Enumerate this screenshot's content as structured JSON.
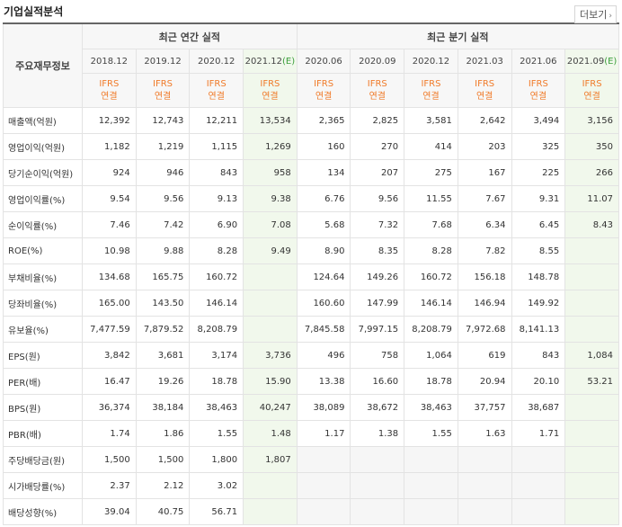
{
  "section": {
    "title": "기업실적분석",
    "more_label": "더보기"
  },
  "table": {
    "corner": "주요재무정보",
    "annual_label": "최근 연간 실적",
    "quarter_label": "최근 분기 실적",
    "annual_periods": [
      {
        "year": "2018.12",
        "est": false
      },
      {
        "year": "2019.12",
        "est": false
      },
      {
        "year": "2020.12",
        "est": false
      },
      {
        "year": "2021.12",
        "est": true,
        "est_mark": "(E)"
      }
    ],
    "quarter_periods": [
      {
        "year": "2020.06",
        "est": false
      },
      {
        "year": "2020.09",
        "est": false
      },
      {
        "year": "2020.12",
        "est": false
      },
      {
        "year": "2021.03",
        "est": false
      },
      {
        "year": "2021.06",
        "est": false
      },
      {
        "year": "2021.09",
        "est": true,
        "est_mark": "(E)"
      }
    ],
    "basis_top": "IFRS",
    "basis_bottom": "연결",
    "rows": [
      {
        "label": "매출액(억원)",
        "values": [
          "12,392",
          "12,743",
          "12,211",
          "13,534",
          "2,365",
          "2,825",
          "3,581",
          "2,642",
          "3,494",
          "3,156"
        ]
      },
      {
        "label": "영업이익(억원)",
        "values": [
          "1,182",
          "1,219",
          "1,115",
          "1,269",
          "160",
          "270",
          "414",
          "203",
          "325",
          "350"
        ]
      },
      {
        "label": "당기순이익(억원)",
        "values": [
          "924",
          "946",
          "843",
          "958",
          "134",
          "207",
          "275",
          "167",
          "225",
          "266"
        ]
      },
      {
        "label": "영업이익률(%)",
        "values": [
          "9.54",
          "9.56",
          "9.13",
          "9.38",
          "6.76",
          "9.56",
          "11.55",
          "7.67",
          "9.31",
          "11.07"
        ]
      },
      {
        "label": "순이익률(%)",
        "values": [
          "7.46",
          "7.42",
          "6.90",
          "7.08",
          "5.68",
          "7.32",
          "7.68",
          "6.34",
          "6.45",
          "8.43"
        ]
      },
      {
        "label": "ROE(%)",
        "values": [
          "10.98",
          "9.88",
          "8.28",
          "9.49",
          "8.90",
          "8.35",
          "8.28",
          "7.82",
          "8.55",
          ""
        ]
      },
      {
        "label": "부채비율(%)",
        "values": [
          "134.68",
          "165.75",
          "160.72",
          "",
          "124.64",
          "149.26",
          "160.72",
          "156.18",
          "148.78",
          ""
        ]
      },
      {
        "label": "당좌비율(%)",
        "values": [
          "165.00",
          "143.50",
          "146.14",
          "",
          "160.60",
          "147.99",
          "146.14",
          "146.94",
          "149.92",
          ""
        ]
      },
      {
        "label": "유보율(%)",
        "values": [
          "7,477.59",
          "7,879.52",
          "8,208.79",
          "",
          "7,845.58",
          "7,997.15",
          "8,208.79",
          "7,972.68",
          "8,141.13",
          ""
        ]
      },
      {
        "label": "EPS(원)",
        "values": [
          "3,842",
          "3,681",
          "3,174",
          "3,736",
          "496",
          "758",
          "1,064",
          "619",
          "843",
          "1,084"
        ]
      },
      {
        "label": "PER(배)",
        "values": [
          "16.47",
          "19.26",
          "18.78",
          "15.90",
          "13.38",
          "16.60",
          "18.78",
          "20.94",
          "20.10",
          "53.21"
        ]
      },
      {
        "label": "BPS(원)",
        "values": [
          "36,374",
          "38,184",
          "38,463",
          "40,247",
          "38,089",
          "38,672",
          "38,463",
          "37,757",
          "38,687",
          ""
        ]
      },
      {
        "label": "PBR(배)",
        "values": [
          "1.74",
          "1.86",
          "1.55",
          "1.48",
          "1.17",
          "1.38",
          "1.55",
          "1.63",
          "1.71",
          ""
        ]
      },
      {
        "label": "주당배당금(원)",
        "values": [
          "1,500",
          "1,500",
          "1,800",
          "1,807",
          "",
          "",
          "",
          "",
          "",
          ""
        ]
      },
      {
        "label": "시가배당률(%)",
        "values": [
          "2.37",
          "2.12",
          "3.02",
          "",
          "",
          "",
          "",
          "",
          "",
          ""
        ]
      },
      {
        "label": "배당성향(%)",
        "values": [
          "39.04",
          "40.75",
          "56.71",
          "",
          "",
          "",
          "",
          "",
          "",
          ""
        ]
      }
    ],
    "group_starts": [
      0,
      3,
      6,
      9,
      13
    ]
  },
  "colors": {
    "accent": "#f07b2a",
    "estimate_bg": "#f1f8ec",
    "estimate_mark": "#3a9e3a"
  }
}
